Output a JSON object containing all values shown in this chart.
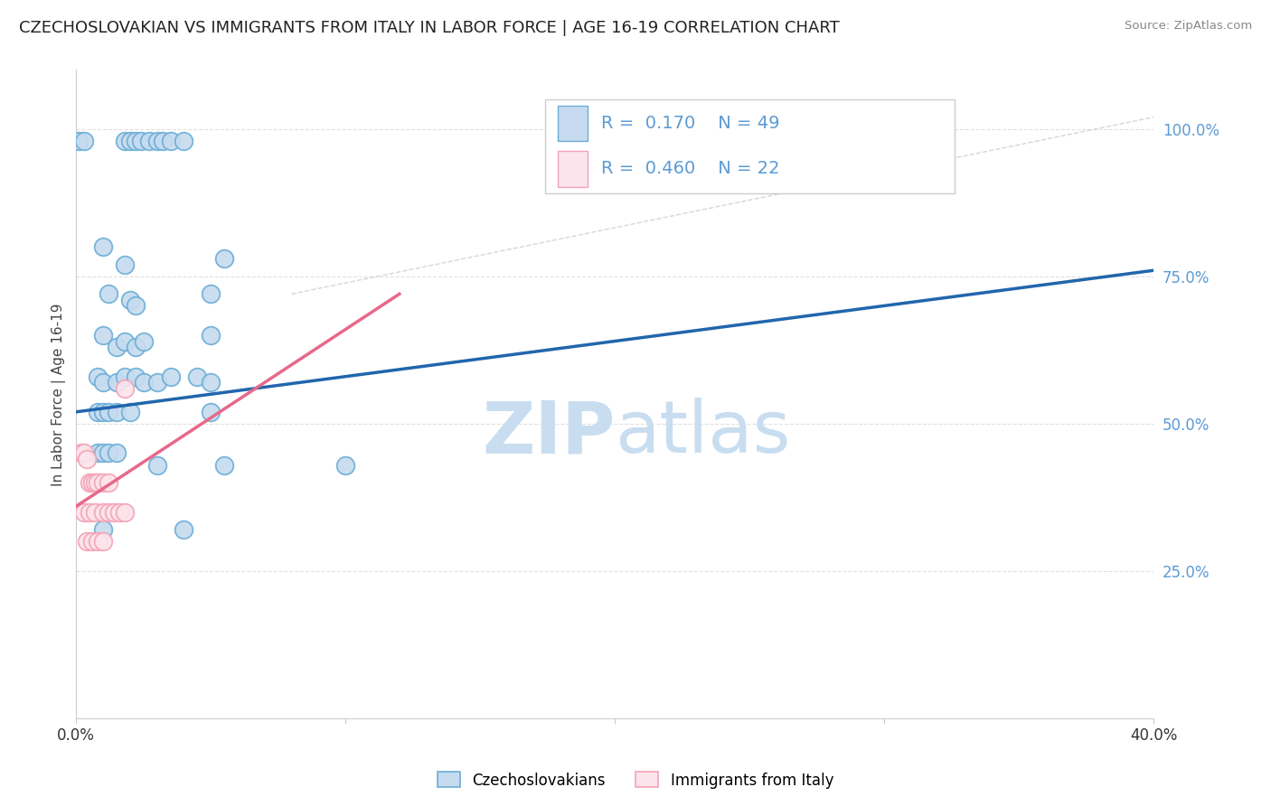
{
  "title": "CZECHOSLOVAKIAN VS IMMIGRANTS FROM ITALY IN LABOR FORCE | AGE 16-19 CORRELATION CHART",
  "source": "Source: ZipAtlas.com",
  "ylabel": "In Labor Force | Age 16-19",
  "xlim": [
    0.0,
    0.4
  ],
  "ylim": [
    0.0,
    1.1
  ],
  "legend_label1": "Czechoslovakians",
  "legend_label2": "Immigrants from Italy",
  "R1": 0.17,
  "N1": 49,
  "R2": 0.46,
  "N2": 22,
  "blue_edge": "#6baed6",
  "blue_face": "#c6dbef",
  "pink_edge": "#f4a3b5",
  "pink_face": "#fce4ec",
  "trend_blue": "#2166ac",
  "trend_pink": "#e8688a",
  "watermark_color": "#c8ddf0",
  "background_color": "#ffffff",
  "title_color": "#222222",
  "right_tick_color": "#5b9bd5",
  "blue_scatter": [
    [
      0.001,
      0.98
    ],
    [
      0.003,
      0.98
    ],
    [
      0.018,
      0.98
    ],
    [
      0.02,
      0.98
    ],
    [
      0.022,
      0.98
    ],
    [
      0.024,
      0.98
    ],
    [
      0.027,
      0.98
    ],
    [
      0.03,
      0.98
    ],
    [
      0.032,
      0.98
    ],
    [
      0.035,
      0.98
    ],
    [
      0.04,
      0.98
    ],
    [
      0.01,
      0.8
    ],
    [
      0.018,
      0.77
    ],
    [
      0.055,
      0.78
    ],
    [
      0.012,
      0.72
    ],
    [
      0.02,
      0.71
    ],
    [
      0.022,
      0.7
    ],
    [
      0.05,
      0.72
    ],
    [
      0.01,
      0.65
    ],
    [
      0.015,
      0.63
    ],
    [
      0.018,
      0.64
    ],
    [
      0.022,
      0.63
    ],
    [
      0.025,
      0.64
    ],
    [
      0.05,
      0.65
    ],
    [
      0.008,
      0.58
    ],
    [
      0.01,
      0.57
    ],
    [
      0.015,
      0.57
    ],
    [
      0.018,
      0.58
    ],
    [
      0.022,
      0.58
    ],
    [
      0.025,
      0.57
    ],
    [
      0.03,
      0.57
    ],
    [
      0.035,
      0.58
    ],
    [
      0.045,
      0.58
    ],
    [
      0.05,
      0.57
    ],
    [
      0.008,
      0.52
    ],
    [
      0.01,
      0.52
    ],
    [
      0.012,
      0.52
    ],
    [
      0.015,
      0.52
    ],
    [
      0.02,
      0.52
    ],
    [
      0.05,
      0.52
    ],
    [
      0.008,
      0.45
    ],
    [
      0.01,
      0.45
    ],
    [
      0.012,
      0.45
    ],
    [
      0.015,
      0.45
    ],
    [
      0.03,
      0.43
    ],
    [
      0.055,
      0.43
    ],
    [
      0.1,
      0.43
    ],
    [
      0.01,
      0.32
    ],
    [
      0.04,
      0.32
    ]
  ],
  "pink_scatter": [
    [
      0.002,
      0.45
    ],
    [
      0.003,
      0.45
    ],
    [
      0.004,
      0.44
    ],
    [
      0.005,
      0.4
    ],
    [
      0.006,
      0.4
    ],
    [
      0.007,
      0.4
    ],
    [
      0.008,
      0.4
    ],
    [
      0.01,
      0.4
    ],
    [
      0.012,
      0.4
    ],
    [
      0.003,
      0.35
    ],
    [
      0.005,
      0.35
    ],
    [
      0.007,
      0.35
    ],
    [
      0.01,
      0.35
    ],
    [
      0.012,
      0.35
    ],
    [
      0.014,
      0.35
    ],
    [
      0.016,
      0.35
    ],
    [
      0.018,
      0.35
    ],
    [
      0.004,
      0.3
    ],
    [
      0.006,
      0.3
    ],
    [
      0.008,
      0.3
    ],
    [
      0.01,
      0.3
    ],
    [
      0.018,
      0.56
    ]
  ],
  "dashed_line_color": "#cccccc",
  "grid_color": "#e0e0e0"
}
